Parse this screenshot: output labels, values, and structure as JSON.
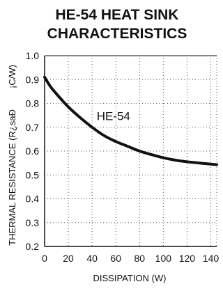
{
  "chart_data": {
    "type": "line",
    "title": "HE-54 HEAT SINK CHARACTERISTICS",
    "title_lines": [
      "HE-54 HEAT SINK",
      "CHARACTERISTICS"
    ],
    "xlabel": "DISSIPATION (W)",
    "ylabel": "THERMAL RESISTANCE (R¿saÐ",
    "yunit": "¡C/W)",
    "xlim": [
      0,
      145
    ],
    "ylim": [
      0.2,
      1.0
    ],
    "x_ticks": [
      0,
      20,
      40,
      60,
      80,
      100,
      120,
      140
    ],
    "x_tick_labels": [
      "0",
      "20",
      "40",
      "60",
      "80",
      "100",
      "120",
      "140"
    ],
    "y_ticks": [
      0.2,
      0.3,
      0.4,
      0.5,
      0.6,
      0.7,
      0.8,
      0.9,
      1.0
    ],
    "y_tick_labels": [
      "0.2",
      "0.3",
      "0.4",
      "0.5",
      "0.6",
      "0.7",
      "0.8",
      "0.9",
      "1.0"
    ],
    "grid": true,
    "grid_style": "dotted",
    "series": [
      {
        "name": "HE-54",
        "color": "#111111",
        "x": [
          0,
          5,
          10,
          20,
          30,
          40,
          50,
          60,
          70,
          80,
          90,
          100,
          110,
          120,
          130,
          140,
          145
        ],
        "y": [
          0.91,
          0.87,
          0.84,
          0.785,
          0.74,
          0.7,
          0.665,
          0.64,
          0.62,
          0.6,
          0.585,
          0.572,
          0.562,
          0.555,
          0.55,
          0.545,
          0.543
        ]
      }
    ],
    "annotations": [
      {
        "text": "HE-54",
        "x": 58,
        "y": 0.73
      }
    ]
  }
}
